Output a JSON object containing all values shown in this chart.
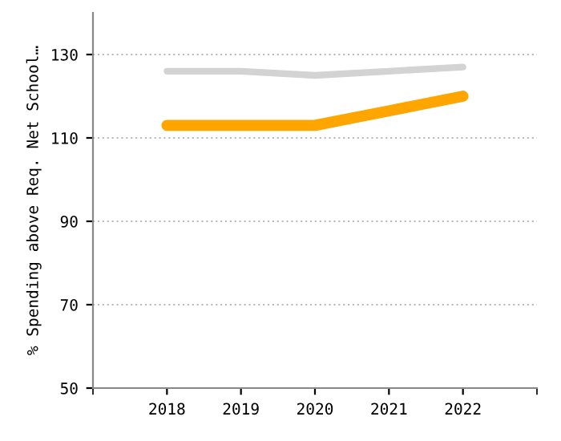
{
  "chart_data": {
    "type": "line",
    "ylabel": "% Spending above Req. Net School…",
    "categories": [
      "2018",
      "2019",
      "2020",
      "2021",
      "2022"
    ],
    "series": [
      {
        "color": "#d3d3d3",
        "values": [
          126,
          126,
          125,
          126,
          127
        ]
      },
      {
        "color": "#ffa500",
        "values": [
          113,
          113,
          113,
          116.5,
          120
        ]
      }
    ],
    "ylim": [
      50,
      140
    ],
    "yticks": [
      50,
      70,
      90,
      110,
      130
    ],
    "grid": "y",
    "legend": false,
    "marker": "none",
    "line_style": "solid"
  }
}
